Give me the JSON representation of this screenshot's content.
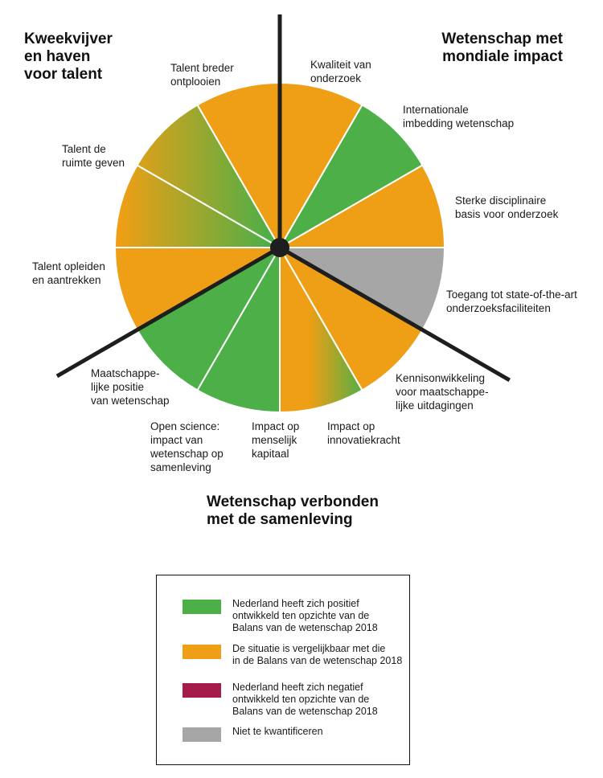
{
  "colors": {
    "positive": "#4caf48",
    "comparable": "#ee9f15",
    "negative": "#a51c4a",
    "not_quantifiable": "#a6a6a6",
    "axis": "#1e1e1e"
  },
  "groups": [
    {
      "title": "Kweekvijver\nen haven\nvoor talent"
    },
    {
      "title": "Wetenschap met\nmondiale impact"
    },
    {
      "title": "Wetenschap verbonden\nmet de samenleving"
    }
  ],
  "segments": [
    {
      "label": "Kwaliteit van\nonderzoek",
      "status": "comparable"
    },
    {
      "label": "Internationale\nimbedding wetenschap",
      "status": "positive"
    },
    {
      "label": "Sterke disciplinaire\nbasis voor onderzoek",
      "status": "comparable"
    },
    {
      "label": "Toegang tot state-of-the-art\nonderzoeksfaciliteiten",
      "status": "not_quantifiable"
    },
    {
      "label": "Kennisonwikkeling\nvoor maatschappe-\nlijke uitdagingen",
      "status": "comparable"
    },
    {
      "label": "Impact op\ninnovatiekracht",
      "status": "positive-to-comparable"
    },
    {
      "label": "Impact op\nmenselijk\nkapitaal",
      "status": "positive"
    },
    {
      "label": "Open science:\nimpact van\nwetenschap op\nsamenleving",
      "status": "positive"
    },
    {
      "label": "Maatschappe-\nlijke positie\nvan wetenschap",
      "status": "comparable"
    },
    {
      "label": "Talent opleiden\nen aantrekken",
      "status": "comparable-to-positive"
    },
    {
      "label": "Talent de\nruimte geven",
      "status": "comparable-to-positive"
    },
    {
      "label": "Talent breder\nontplooien",
      "status": "comparable"
    }
  ],
  "legend": [
    {
      "key": "positive",
      "text": "Nederland heeft zich positief\nontwikkeld ten opzichte van de\nBalans van de wetenschap 2018"
    },
    {
      "key": "comparable",
      "text": "De situatie is vergelijkbaar met die\nin de Balans van de wetenschap 2018"
    },
    {
      "key": "negative",
      "text": "Nederland heeft zich negatief\nontwikkeld ten opzichte van de\nBalans van de wetenschap 2018"
    },
    {
      "key": "not_quantifiable",
      "text": "Niet te kwantificeren"
    }
  ]
}
